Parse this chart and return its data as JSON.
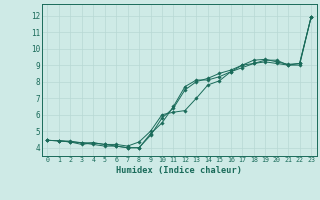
{
  "xlabel": "Humidex (Indice chaleur)",
  "xlim": [
    -0.5,
    23.5
  ],
  "ylim": [
    3.5,
    12.7
  ],
  "xticks": [
    0,
    1,
    2,
    3,
    4,
    5,
    6,
    7,
    8,
    9,
    10,
    11,
    12,
    13,
    14,
    15,
    16,
    17,
    18,
    19,
    20,
    21,
    22,
    23
  ],
  "yticks": [
    4,
    5,
    6,
    7,
    8,
    9,
    10,
    11,
    12
  ],
  "background_color": "#ceeae6",
  "grid_color": "#b8d8d4",
  "line_color": "#1a6b5a",
  "series": [
    [
      4.45,
      4.42,
      4.35,
      4.2,
      4.3,
      4.2,
      4.1,
      4.0,
      4.0,
      4.85,
      5.5,
      6.5,
      7.7,
      8.1,
      8.1,
      8.3,
      8.6,
      9.0,
      9.3,
      9.35,
      9.2,
      9.05,
      9.1,
      11.9
    ],
    [
      4.45,
      4.42,
      4.35,
      4.3,
      4.3,
      4.2,
      4.2,
      4.1,
      4.35,
      5.0,
      6.0,
      6.15,
      6.25,
      7.0,
      7.8,
      8.05,
      8.6,
      8.85,
      9.1,
      9.3,
      9.3,
      9.0,
      9.1,
      11.9
    ],
    [
      4.45,
      4.42,
      4.4,
      4.3,
      4.2,
      4.1,
      4.1,
      4.0,
      4.0,
      4.75,
      5.8,
      6.4,
      7.5,
      8.0,
      8.2,
      8.5,
      8.7,
      9.0,
      9.1,
      9.2,
      9.1,
      9.0,
      9.0,
      11.9
    ]
  ]
}
